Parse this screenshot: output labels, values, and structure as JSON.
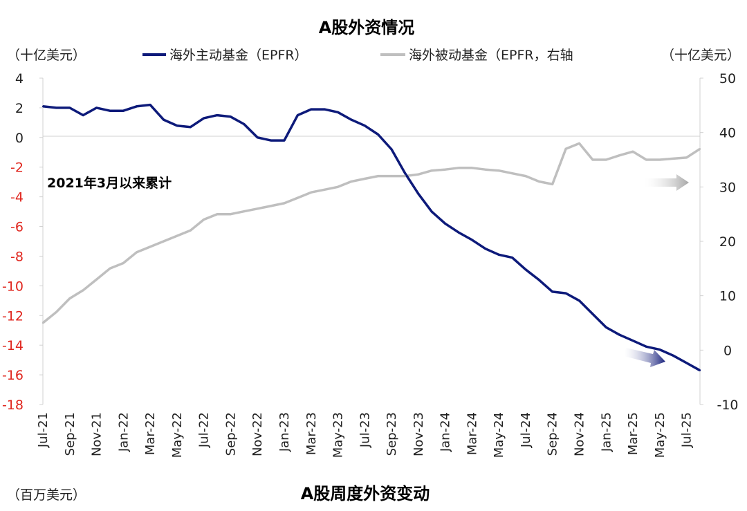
{
  "chart_data": {
    "type": "line",
    "title": "A股外资情况",
    "bottom_title": "A股周度外资变动",
    "left_unit": "（十亿美元）",
    "right_unit": "（十亿美元）",
    "bottom_unit": "（百万美元）",
    "annotation": "2021年3月以来累计",
    "left_axis": {
      "ylim": [
        -18,
        4
      ],
      "ticks": [
        "4",
        "2",
        "0",
        "-2",
        "-4",
        "-6",
        "-8",
        "-10",
        "-12",
        "-14",
        "-16",
        "-18"
      ]
    },
    "right_axis": {
      "ylim": [
        -10,
        50
      ],
      "ticks": [
        "50",
        "40",
        "30",
        "20",
        "10",
        "0",
        "-10"
      ]
    },
    "x_ticks": [
      "Jul-21",
      "Sep-21",
      "Nov-21",
      "Jan-22",
      "Mar-22",
      "May-22",
      "Jul-22",
      "Sep-22",
      "Nov-22",
      "Jan-23",
      "Mar-23",
      "May-23",
      "Jul-23",
      "Sep-23",
      "Nov-23",
      "Jan-24",
      "Mar-24",
      "May-24",
      "Jul-24",
      "Sep-24",
      "Nov-24",
      "Jan-25",
      "Mar-25",
      "May-25",
      "Jul-25"
    ],
    "x_range": [
      "2021-07",
      "2025-08"
    ],
    "series": [
      {
        "name": "海外主动基金（EPFR）",
        "axis": "left",
        "color": "#0d1a7a",
        "x": [
          "2021-07",
          "2021-08",
          "2021-09",
          "2021-10",
          "2021-11",
          "2021-12",
          "2022-01",
          "2022-02",
          "2022-03",
          "2022-04",
          "2022-05",
          "2022-06",
          "2022-07",
          "2022-08",
          "2022-09",
          "2022-10",
          "2022-11",
          "2022-12",
          "2023-01",
          "2023-02",
          "2023-03",
          "2023-04",
          "2023-05",
          "2023-06",
          "2023-07",
          "2023-08",
          "2023-09",
          "2023-10",
          "2023-11",
          "2023-12",
          "2024-01",
          "2024-02",
          "2024-03",
          "2024-04",
          "2024-05",
          "2024-06",
          "2024-07",
          "2024-08",
          "2024-09",
          "2024-10",
          "2024-11",
          "2024-12",
          "2025-01",
          "2025-02",
          "2025-03",
          "2025-04",
          "2025-05",
          "2025-06",
          "2025-07",
          "2025-08"
        ],
        "values": [
          2.1,
          2.0,
          2.0,
          1.5,
          2.0,
          1.8,
          1.8,
          2.1,
          2.2,
          1.2,
          0.8,
          0.7,
          1.3,
          1.5,
          1.4,
          0.9,
          0.0,
          -0.2,
          -0.2,
          1.5,
          1.9,
          1.9,
          1.7,
          1.2,
          0.8,
          0.2,
          -0.8,
          -2.4,
          -3.8,
          -5.0,
          -5.8,
          -6.4,
          -6.9,
          -7.5,
          -7.9,
          -8.1,
          -8.9,
          -9.6,
          -10.4,
          -10.5,
          -11.0,
          -11.9,
          -12.8,
          -13.3,
          -13.7,
          -14.1,
          -14.3,
          -14.7,
          -15.2,
          -15.7
        ]
      },
      {
        "name": "海外被动基金（EPFR，右轴",
        "axis": "right",
        "color": "#bfbfbf",
        "x": [
          "2021-07",
          "2021-08",
          "2021-09",
          "2021-10",
          "2021-11",
          "2021-12",
          "2022-01",
          "2022-02",
          "2022-03",
          "2022-04",
          "2022-05",
          "2022-06",
          "2022-07",
          "2022-08",
          "2022-09",
          "2022-10",
          "2022-11",
          "2022-12",
          "2023-01",
          "2023-02",
          "2023-03",
          "2023-04",
          "2023-05",
          "2023-06",
          "2023-07",
          "2023-08",
          "2023-09",
          "2023-10",
          "2023-11",
          "2023-12",
          "2024-01",
          "2024-02",
          "2024-03",
          "2024-04",
          "2024-05",
          "2024-06",
          "2024-07",
          "2024-08",
          "2024-09",
          "2024-10",
          "2024-11",
          "2024-12",
          "2025-01",
          "2025-02",
          "2025-03",
          "2025-04",
          "2025-05",
          "2025-06",
          "2025-07",
          "2025-08"
        ],
        "values": [
          5,
          7,
          9.5,
          11,
          13,
          15,
          16,
          18,
          19,
          20,
          21,
          22,
          24,
          25,
          25,
          25.5,
          26,
          26.5,
          27,
          28,
          29,
          29.5,
          30,
          31,
          31.5,
          32,
          32,
          32,
          32.3,
          33,
          33.2,
          33.5,
          33.5,
          33.2,
          33,
          32.5,
          32,
          31,
          30.5,
          37,
          38,
          35,
          35,
          35.8,
          36.5,
          35,
          35,
          35.2,
          35.4,
          37
        ]
      }
    ]
  }
}
